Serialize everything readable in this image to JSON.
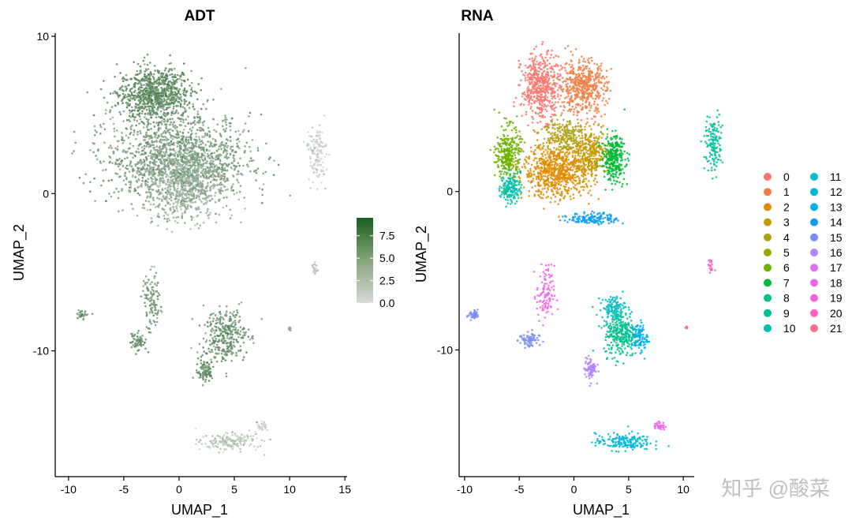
{
  "chart_data": [
    {
      "type": "scatter",
      "title": "ADT",
      "xlabel": "UMAP_1",
      "ylabel": "UMAP_2",
      "xlim": [
        -11.2,
        15.2
      ],
      "ylim": [
        -18,
        10.2
      ],
      "xticks": [
        -10,
        -5,
        0,
        5,
        10,
        15
      ],
      "yticks": [
        -10,
        0,
        10
      ],
      "colorbar": {
        "low_color": "#d9d9d9",
        "high_color": "#1b5e20",
        "range": [
          0,
          9.5
        ],
        "ticks": [
          "0.0",
          "2.5",
          "5.0",
          "7.5"
        ]
      },
      "clusters": [
        {
          "x": -2.2,
          "y": 6.3,
          "rx": 3.6,
          "ry": 1.9,
          "n": 900,
          "value": 6.0
        },
        {
          "x": 0.0,
          "y": 2.2,
          "rx": 7.0,
          "ry": 3.0,
          "n": 1500,
          "value": 4.8
        },
        {
          "x": 0.5,
          "y": 0.5,
          "rx": 4.0,
          "ry": 2.4,
          "n": 600,
          "value": 3.2
        },
        {
          "x": 12.5,
          "y": 2.5,
          "rx": 0.9,
          "ry": 2.0,
          "n": 120,
          "value": 0.8
        },
        {
          "x": 12.3,
          "y": -4.8,
          "rx": 0.3,
          "ry": 0.4,
          "n": 20,
          "value": 1.5
        },
        {
          "x": -8.8,
          "y": -7.7,
          "rx": 0.6,
          "ry": 0.35,
          "n": 35,
          "value": 5.2
        },
        {
          "x": -3.8,
          "y": -9.4,
          "rx": 1.0,
          "ry": 0.6,
          "n": 60,
          "value": 5.5
        },
        {
          "x": -2.5,
          "y": -6.8,
          "rx": 0.9,
          "ry": 2.0,
          "n": 110,
          "value": 5.0
        },
        {
          "x": 4.2,
          "y": -9.0,
          "rx": 2.2,
          "ry": 1.9,
          "n": 320,
          "value": 5.5
        },
        {
          "x": 2.3,
          "y": -11.2,
          "rx": 1.0,
          "ry": 0.8,
          "n": 90,
          "value": 5.8
        },
        {
          "x": 4.5,
          "y": -15.8,
          "rx": 2.8,
          "ry": 0.6,
          "n": 170,
          "value": 1.5
        },
        {
          "x": 7.5,
          "y": -14.8,
          "rx": 0.6,
          "ry": 0.3,
          "n": 30,
          "value": 0.8
        },
        {
          "x": 10.0,
          "y": -8.6,
          "rx": 0.12,
          "ry": 0.1,
          "n": 6,
          "value": 4.0
        }
      ]
    },
    {
      "type": "scatter",
      "title": "RNA",
      "xlabel": "UMAP_1",
      "ylabel": "UMAP_2",
      "xlim": [
        -10.5,
        11
      ],
      "ylim": [
        -18,
        10
      ],
      "xticks": [
        -10,
        -5,
        0,
        5,
        10
      ],
      "yticks": [
        -10,
        0
      ],
      "legend_position": "right",
      "legend": [
        {
          "label": "0",
          "color": "#F8766D"
        },
        {
          "label": "1",
          "color": "#EF7F46"
        },
        {
          "label": "2",
          "color": "#DE8C00"
        },
        {
          "label": "3",
          "color": "#C59900"
        },
        {
          "label": "4",
          "color": "#AAA219"
        },
        {
          "label": "5",
          "color": "#9CA700"
        },
        {
          "label": "6",
          "color": "#6BB100"
        },
        {
          "label": "7",
          "color": "#00BA38"
        },
        {
          "label": "8",
          "color": "#00C08B"
        },
        {
          "label": "9",
          "color": "#00BF96"
        },
        {
          "label": "10",
          "color": "#00BFAE"
        },
        {
          "label": "11",
          "color": "#00BCC7"
        },
        {
          "label": "12",
          "color": "#00B6D9"
        },
        {
          "label": "13",
          "color": "#00ADE8"
        },
        {
          "label": "14",
          "color": "#0C9DF2"
        },
        {
          "label": "15",
          "color": "#7A8DF0"
        },
        {
          "label": "16",
          "color": "#B385FF"
        },
        {
          "label": "17",
          "color": "#DB72FB"
        },
        {
          "label": "18",
          "color": "#EF67EB"
        },
        {
          "label": "19",
          "color": "#FB61D7"
        },
        {
          "label": "20",
          "color": "#FF62BC"
        },
        {
          "label": "21",
          "color": "#FF6C91"
        }
      ],
      "clusters": [
        {
          "x": -3.0,
          "y": 6.6,
          "rx": 2.0,
          "ry": 2.3,
          "n": 500,
          "cluster": "0"
        },
        {
          "x": 0.8,
          "y": 6.6,
          "rx": 2.4,
          "ry": 1.9,
          "n": 500,
          "cluster": "1"
        },
        {
          "x": -1.5,
          "y": 1.3,
          "rx": 3.5,
          "ry": 1.9,
          "n": 750,
          "cluster": "2"
        },
        {
          "x": 1.5,
          "y": 2.4,
          "rx": 1.8,
          "ry": 1.6,
          "n": 300,
          "cluster": "3"
        },
        {
          "x": -1.0,
          "y": 3.6,
          "rx": 2.2,
          "ry": 1.2,
          "n": 200,
          "cluster": "4"
        },
        {
          "x": -6.0,
          "y": 2.3,
          "rx": 1.2,
          "ry": 2.0,
          "n": 300,
          "cluster": "6"
        },
        {
          "x": 3.6,
          "y": 2.1,
          "rx": 1.2,
          "ry": 1.6,
          "n": 300,
          "cluster": "7"
        },
        {
          "x": -5.8,
          "y": 0.2,
          "rx": 1.0,
          "ry": 1.0,
          "n": 150,
          "cluster": "10"
        },
        {
          "x": 1.8,
          "y": -1.7,
          "rx": 2.5,
          "ry": 0.4,
          "n": 150,
          "cluster": "14"
        },
        {
          "x": 12.8,
          "y": 3.0,
          "rx": 0.9,
          "ry": 2.0,
          "n": 140,
          "cluster": "9"
        },
        {
          "x": 12.5,
          "y": -4.7,
          "rx": 0.3,
          "ry": 0.45,
          "n": 20,
          "cluster": "20"
        },
        {
          "x": -9.2,
          "y": -7.8,
          "rx": 0.6,
          "ry": 0.35,
          "n": 40,
          "cluster": "15"
        },
        {
          "x": -4.1,
          "y": -9.4,
          "rx": 1.0,
          "ry": 0.6,
          "n": 70,
          "cluster": "15"
        },
        {
          "x": -2.6,
          "y": -6.5,
          "rx": 0.9,
          "ry": 2.0,
          "n": 110,
          "cluster": "18"
        },
        {
          "x": 4.3,
          "y": -8.9,
          "rx": 1.7,
          "ry": 1.7,
          "n": 300,
          "cluster": "8"
        },
        {
          "x": 3.6,
          "y": -7.3,
          "rx": 1.2,
          "ry": 0.8,
          "n": 100,
          "cluster": "11"
        },
        {
          "x": 6.0,
          "y": -9.2,
          "rx": 0.8,
          "ry": 1.0,
          "n": 90,
          "cluster": "13"
        },
        {
          "x": 1.5,
          "y": -11.2,
          "rx": 0.6,
          "ry": 0.8,
          "n": 80,
          "cluster": "16"
        },
        {
          "x": 4.5,
          "y": -15.8,
          "rx": 2.8,
          "ry": 0.6,
          "n": 170,
          "cluster": "12"
        },
        {
          "x": 7.8,
          "y": -14.8,
          "rx": 0.6,
          "ry": 0.3,
          "n": 40,
          "cluster": "18"
        },
        {
          "x": 10.3,
          "y": -8.6,
          "rx": 0.12,
          "ry": 0.1,
          "n": 6,
          "cluster": "21"
        }
      ]
    }
  ],
  "watermark": "知乎 @酸菜"
}
